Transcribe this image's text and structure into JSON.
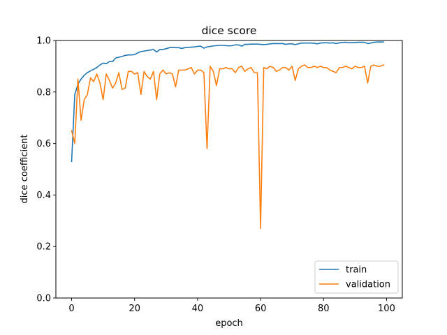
{
  "chart_data": {
    "type": "line",
    "title": "dice score",
    "xlabel": "epoch",
    "ylabel": "dice coefficient",
    "xlim": [
      -5,
      105
    ],
    "ylim": [
      0.0,
      1.0
    ],
    "xticks": [
      0,
      20,
      40,
      60,
      80,
      100
    ],
    "xtick_labels": [
      "0",
      "20",
      "40",
      "60",
      "80",
      "100"
    ],
    "yticks": [
      0.0,
      0.2,
      0.4,
      0.6,
      0.8,
      1.0
    ],
    "ytick_labels": [
      "0.0",
      "0.2",
      "0.4",
      "0.6",
      "0.8",
      "1.0"
    ],
    "grid": false,
    "legend_position": "bottom-right",
    "x": [
      0,
      1,
      2,
      3,
      4,
      5,
      6,
      7,
      8,
      9,
      10,
      11,
      12,
      13,
      14,
      15,
      16,
      17,
      18,
      19,
      20,
      21,
      22,
      23,
      24,
      25,
      26,
      27,
      28,
      29,
      30,
      31,
      32,
      33,
      34,
      35,
      36,
      37,
      38,
      39,
      40,
      41,
      42,
      43,
      44,
      45,
      46,
      47,
      48,
      49,
      50,
      51,
      52,
      53,
      54,
      55,
      56,
      57,
      58,
      59,
      60,
      61,
      62,
      63,
      64,
      65,
      66,
      67,
      68,
      69,
      70,
      71,
      72,
      73,
      74,
      75,
      76,
      77,
      78,
      79,
      80,
      81,
      82,
      83,
      84,
      85,
      86,
      87,
      88,
      89,
      90,
      91,
      92,
      93,
      94,
      95,
      96,
      97,
      98,
      99
    ],
    "series": [
      {
        "name": "train",
        "color": "#1f77b4",
        "values": [
          0.53,
          0.79,
          0.83,
          0.85,
          0.865,
          0.875,
          0.882,
          0.888,
          0.895,
          0.905,
          0.912,
          0.91,
          0.918,
          0.918,
          0.932,
          0.935,
          0.938,
          0.942,
          0.944,
          0.944,
          0.945,
          0.952,
          0.957,
          0.959,
          0.961,
          0.963,
          0.965,
          0.955,
          0.965,
          0.965,
          0.968,
          0.972,
          0.973,
          0.972,
          0.972,
          0.969,
          0.972,
          0.973,
          0.974,
          0.975,
          0.977,
          0.978,
          0.97,
          0.975,
          0.977,
          0.979,
          0.98,
          0.981,
          0.981,
          0.98,
          0.979,
          0.98,
          0.983,
          0.983,
          0.978,
          0.985,
          0.985,
          0.986,
          0.986,
          0.986,
          0.985,
          0.984,
          0.985,
          0.987,
          0.988,
          0.988,
          0.988,
          0.988,
          0.985,
          0.987,
          0.987,
          0.984,
          0.987,
          0.99,
          0.99,
          0.99,
          0.99,
          0.989,
          0.987,
          0.99,
          0.991,
          0.991,
          0.99,
          0.991,
          0.988,
          0.991,
          0.992,
          0.993,
          0.991,
          0.992,
          0.992,
          0.993,
          0.993,
          0.993,
          0.988,
          0.99,
          0.993,
          0.994,
          0.994,
          0.994
        ]
      },
      {
        "name": "validation",
        "color": "#ff7f0e",
        "values": [
          0.65,
          0.6,
          0.85,
          0.69,
          0.77,
          0.79,
          0.855,
          0.84,
          0.87,
          0.835,
          0.77,
          0.87,
          0.845,
          0.815,
          0.835,
          0.875,
          0.81,
          0.815,
          0.88,
          0.88,
          0.87,
          0.875,
          0.79,
          0.88,
          0.86,
          0.85,
          0.88,
          0.77,
          0.87,
          0.885,
          0.87,
          0.875,
          0.87,
          0.82,
          0.885,
          0.885,
          0.885,
          0.89,
          0.895,
          0.87,
          0.885,
          0.885,
          0.875,
          0.58,
          0.9,
          0.88,
          0.825,
          0.89,
          0.89,
          0.895,
          0.89,
          0.89,
          0.875,
          0.895,
          0.9,
          0.88,
          0.89,
          0.895,
          0.875,
          0.875,
          0.27,
          0.895,
          0.89,
          0.9,
          0.895,
          0.88,
          0.885,
          0.895,
          0.895,
          0.885,
          0.9,
          0.845,
          0.89,
          0.9,
          0.905,
          0.895,
          0.895,
          0.9,
          0.895,
          0.9,
          0.895,
          0.895,
          0.885,
          0.88,
          0.875,
          0.895,
          0.895,
          0.9,
          0.895,
          0.89,
          0.9,
          0.895,
          0.895,
          0.9,
          0.835,
          0.9,
          0.905,
          0.9,
          0.9,
          0.905
        ]
      }
    ]
  }
}
